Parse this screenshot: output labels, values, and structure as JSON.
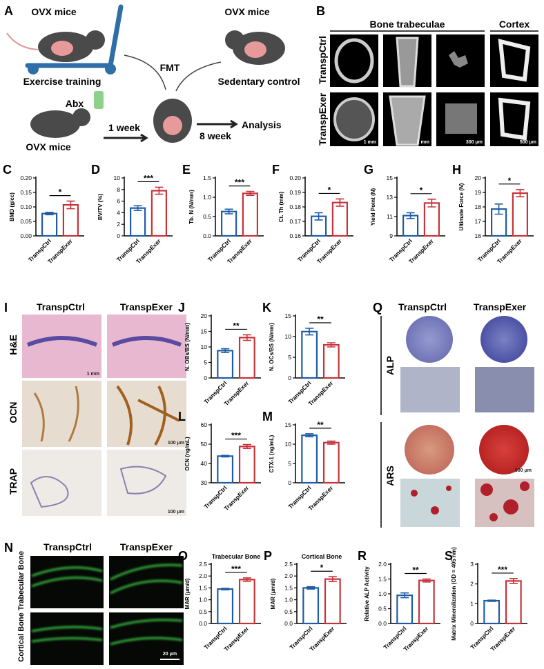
{
  "panel_A": {
    "letter": "A",
    "donor_exercise": "OVX mice",
    "training": "Exercise training",
    "fmt": "FMT",
    "donor_sedentary": "OVX mice",
    "sedentary": "Sedentary control",
    "abx": "Abx",
    "recipient": "OVX mice",
    "week1": "1 week",
    "week8": "8 week",
    "analysis": "Analysis"
  },
  "panel_B": {
    "letter": "B",
    "trabeculae": "Bone trabeculae",
    "cortex": "Cortex",
    "rows": [
      "TranspCtrl",
      "TranspExer"
    ],
    "scale_bars": [
      "1 mm",
      "1 mm",
      "300 μm",
      "500 μm"
    ]
  },
  "panel_I": {
    "letter": "I",
    "columns": [
      "TranspCtrl",
      "TranspExer"
    ],
    "rows": [
      "H&E",
      "OCN",
      "TRAP"
    ],
    "scale_bars": [
      "1 mm",
      "100 μm",
      "100 μm"
    ]
  },
  "panel_Q": {
    "letter": "Q",
    "columns": [
      "TranspCtrl",
      "TranspExer"
    ],
    "rows": [
      "ALP",
      "ARS"
    ],
    "scale_bar": "500 μm"
  },
  "panel_N": {
    "letter": "N",
    "columns": [
      "TranspCtrl",
      "TranspExer"
    ],
    "rows": [
      "Trabecular Bone",
      "Cortical Bone"
    ],
    "scale_bar": "20 μm"
  },
  "chart_data": [
    {
      "type": "bar",
      "panel": "C",
      "ylabel": "BMD (g/cc)",
      "categories": [
        "TranspCtrl",
        "TranspExer"
      ],
      "values": [
        0.077,
        0.107
      ],
      "errors": [
        0.004,
        0.013
      ],
      "colors": [
        "#1f5ca8",
        "#c8323a"
      ],
      "significance": "*",
      "ylim": [
        0,
        0.2
      ],
      "yticks": [
        {
          "value": 0,
          "label": "0.00"
        },
        0.05,
        {
          "value": 0.1,
          "label": "0.10"
        },
        0.15,
        {
          "value": 0.2,
          "label": "0.20"
        }
      ]
    },
    {
      "type": "bar",
      "panel": "D",
      "ylabel": "BV/TV (%)",
      "categories": [
        "TranspCtrl",
        "TranspExer"
      ],
      "values": [
        4.8,
        7.8
      ],
      "errors": [
        0.4,
        0.6
      ],
      "colors": [
        "#1f5ca8",
        "#c8323a"
      ],
      "significance": "***",
      "ylim": [
        0,
        10
      ],
      "yticks": [
        0,
        2,
        4,
        6,
        8,
        10
      ]
    },
    {
      "type": "bar",
      "panel": "E",
      "ylabel": "Tb. N (N/mm)",
      "categories": [
        "TranspCtrl",
        "TranspExer"
      ],
      "values": [
        0.63,
        1.1
      ],
      "errors": [
        0.06,
        0.05
      ],
      "colors": [
        "#1f5ca8",
        "#c8323a"
      ],
      "significance": "***",
      "ylim": [
        0,
        1.5
      ],
      "yticks": [
        {
          "value": 0,
          "label": "0.0"
        },
        0.5,
        {
          "value": 1,
          "label": "1.0"
        },
        1.5
      ]
    },
    {
      "type": "bar",
      "panel": "F",
      "ylabel": "Ct. Th (mm)",
      "categories": [
        "TranspCtrl",
        "TranspExer"
      ],
      "values": [
        0.1735,
        0.183
      ],
      "errors": [
        0.0025,
        0.0025
      ],
      "colors": [
        "#1f5ca8",
        "#c8323a"
      ],
      "significance": "*",
      "ylim": [
        0.16,
        0.2
      ],
      "yticks": [
        0.16,
        0.17,
        0.18,
        0.19,
        {
          "value": 0.2,
          "label": "0.20"
        }
      ]
    },
    {
      "type": "bar",
      "panel": "G",
      "ylabel": "Yield Point (N)",
      "categories": [
        "TranspCtrl",
        "TranspExer"
      ],
      "values": [
        11.1,
        12.4
      ],
      "errors": [
        0.3,
        0.4
      ],
      "colors": [
        "#1f5ca8",
        "#c8323a"
      ],
      "significance": "*",
      "ylim": [
        9,
        15
      ],
      "yticks": [
        9,
        11,
        13,
        15
      ]
    },
    {
      "type": "bar",
      "panel": "H",
      "ylabel": "Ultimate Force (N)",
      "categories": [
        "TranspCtrl",
        "TranspExer"
      ],
      "values": [
        17.85,
        18.95
      ],
      "errors": [
        0.35,
        0.25
      ],
      "colors": [
        "#1f5ca8",
        "#c8323a"
      ],
      "significance": "*",
      "ylim": [
        16,
        20
      ],
      "yticks": [
        16,
        17,
        18,
        19,
        20
      ]
    },
    {
      "type": "bar",
      "panel": "J",
      "ylabel": "N. OBs/BS (N/mm)",
      "categories": [
        "TranspCtrl",
        "TranspExer"
      ],
      "values": [
        8.8,
        13
      ],
      "errors": [
        0.6,
        0.9
      ],
      "colors": [
        "#1f5ca8",
        "#c8323a"
      ],
      "significance": "**",
      "ylim": [
        0,
        20
      ],
      "yticks": [
        0,
        5,
        10,
        15,
        20
      ]
    },
    {
      "type": "bar",
      "panel": "K",
      "ylabel": "N. OCs/BS (N/mm)",
      "categories": [
        "TranspCtrl",
        "TranspExer"
      ],
      "values": [
        11.2,
        8
      ],
      "errors": [
        0.8,
        0.5
      ],
      "colors": [
        "#1f5ca8",
        "#c8323a"
      ],
      "significance": "**",
      "ylim": [
        0,
        15
      ],
      "yticks": [
        0,
        5,
        10,
        15
      ]
    },
    {
      "type": "bar",
      "panel": "L",
      "ylabel": "OCN (ng/mL)",
      "categories": [
        "TranspCtrl",
        "TranspExer"
      ],
      "values": [
        43.8,
        48.8
      ],
      "errors": [
        0.4,
        1
      ],
      "colors": [
        "#1f5ca8",
        "#c8323a"
      ],
      "significance": "***",
      "ylim": [
        30,
        60
      ],
      "yticks": [
        30,
        40,
        50,
        60
      ]
    },
    {
      "type": "bar",
      "panel": "M",
      "ylabel": "CTX-1 (ng/mL)",
      "categories": [
        "TranspCtrl",
        "TranspExer"
      ],
      "values": [
        12.3,
        10.4
      ],
      "errors": [
        0.4,
        0.4
      ],
      "colors": [
        "#1f5ca8",
        "#c8323a"
      ],
      "significance": "**",
      "ylim": [
        0,
        15
      ],
      "yticks": [
        0,
        5,
        10,
        15
      ]
    },
    {
      "type": "bar",
      "panel": "O",
      "title": "Trabecular Bone",
      "ylabel": "MAR (μm/d)",
      "categories": [
        "TranspCtrl",
        "TranspExer"
      ],
      "values": [
        1.45,
        1.85
      ],
      "errors": [
        0.03,
        0.07
      ],
      "colors": [
        "#1f5ca8",
        "#c8323a"
      ],
      "significance": "***",
      "ylim": [
        0,
        2.5
      ],
      "yticks": [
        {
          "value": 0,
          "label": "0.0"
        },
        0.5,
        {
          "value": 1,
          "label": "1.0"
        },
        1.5,
        {
          "value": 2,
          "label": "2.0"
        },
        2.5
      ]
    },
    {
      "type": "bar",
      "panel": "P",
      "title": "Cortical Bone",
      "ylabel": "MAR (μm/d)",
      "categories": [
        "TranspCtrl",
        "TranspExer"
      ],
      "values": [
        1.5,
        1.87
      ],
      "errors": [
        0.05,
        0.1
      ],
      "colors": [
        "#1f5ca8",
        "#c8323a"
      ],
      "significance": "*",
      "ylim": [
        0,
        2.5
      ],
      "yticks": [
        {
          "value": 0,
          "label": "0.0"
        },
        0.5,
        {
          "value": 1,
          "label": "1.0"
        },
        1.5,
        {
          "value": 2,
          "label": "2.0"
        },
        2.5
      ]
    },
    {
      "type": "bar",
      "panel": "R",
      "ylabel": "Relative ALP Activity",
      "categories": [
        "TranspCtrl",
        "TranspExer"
      ],
      "values": [
        0.95,
        1.45
      ],
      "errors": [
        0.08,
        0.05
      ],
      "colors": [
        "#1f5ca8",
        "#c8323a"
      ],
      "significance": "**",
      "ylim": [
        0,
        2
      ],
      "yticks": [
        {
          "value": 0,
          "label": "0.0"
        },
        0.5,
        {
          "value": 1,
          "label": "1.0"
        },
        1.5,
        {
          "value": 2,
          "label": "2.0"
        }
      ]
    },
    {
      "type": "bar",
      "panel": "S",
      "ylabel": "Matrix Mineralization (OD = 405 nm)",
      "categories": [
        "TranspCtrl",
        "TranspExer"
      ],
      "values": [
        1.15,
        2.15
      ],
      "errors": [
        0.03,
        0.12
      ],
      "colors": [
        "#1f5ca8",
        "#c8323a"
      ],
      "significance": "***",
      "ylim": [
        0,
        3
      ],
      "yticks": [
        0,
        1,
        2,
        3
      ]
    }
  ]
}
